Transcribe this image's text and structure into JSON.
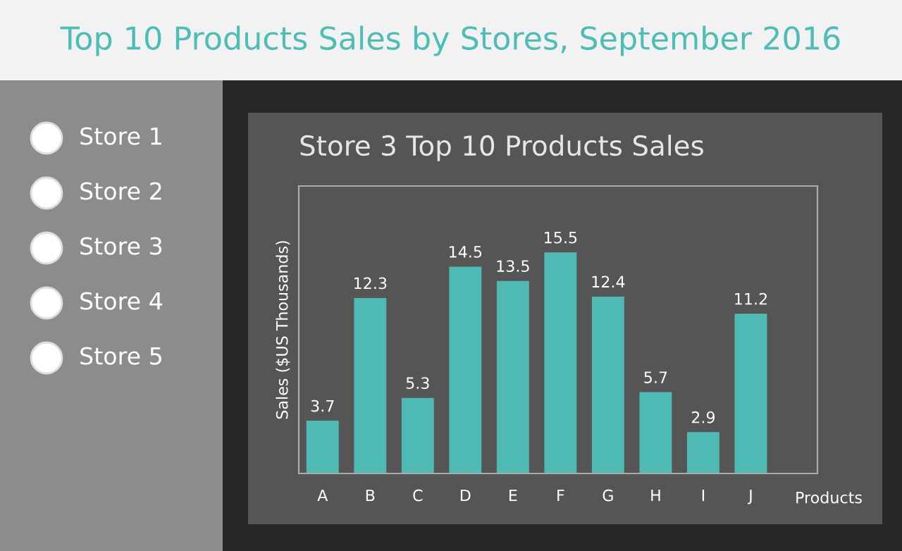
{
  "chart_data": [
    {
      "type": "other",
      "title": "Top 10 Products Sales by Stores, September 2016",
      "annotations": [
        "Store 1",
        "Store 2",
        "Store 3",
        "Store 4",
        "Store 5"
      ]
    },
    {
      "type": "bar",
      "title": "Store 3 Top 10 Products Sales",
      "xlabel": "Products",
      "ylabel": "Sales ($US Thousands)",
      "categories": [
        "A",
        "B",
        "C",
        "D",
        "E",
        "F",
        "G",
        "H",
        "I",
        "J"
      ],
      "values": [
        3.7,
        12.3,
        5.3,
        14.5,
        13.5,
        15.5,
        12.4,
        5.7,
        2.9,
        11.2
      ],
      "color": "#4fbab3",
      "data_labels": true
    }
  ]
}
